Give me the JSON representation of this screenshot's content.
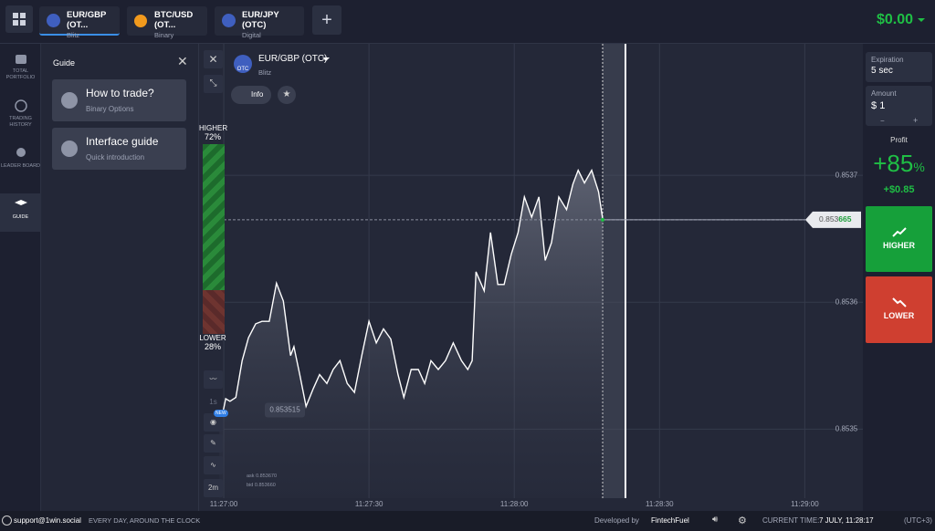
{
  "tabs": [
    {
      "title": "EUR/GBP (OT...",
      "subtitle": "Blitz"
    },
    {
      "title": "BTC/USD (OT...",
      "subtitle": "Binary"
    },
    {
      "title": "EUR/JPY (OTC)",
      "subtitle": "Digital"
    }
  ],
  "balance": "$0.00",
  "sidebar": [
    "TOTAL PORTFOLIO",
    "TRADING HISTORY",
    "LEADER BOARD",
    "GUIDE"
  ],
  "guide": {
    "title": "Guide",
    "items": [
      {
        "title": "How to trade?",
        "subtitle": "Binary Options"
      },
      {
        "title": "Interface guide",
        "subtitle": "Quick introduction"
      }
    ]
  },
  "asset": {
    "name": "EUR/GBP (OTC)",
    "mode": "Blitz",
    "info": "Info",
    "badge": "OTC"
  },
  "sentiment": {
    "higher_label": "HIGHER",
    "higher_pct": "72%",
    "lower_label": "LOWER",
    "lower_pct": "28%"
  },
  "tools": {
    "interval": "1s",
    "badge": "NEW",
    "timeframe": "2m"
  },
  "chart": {
    "type": "line",
    "color": "#ffffff",
    "grid": true,
    "x": [
      -0.9,
      0.4,
      1.3,
      2.5,
      3.8,
      5.1,
      6.6,
      7.9,
      9.4,
      10.9,
      12.3,
      13.8,
      14.5,
      15.7,
      17.0,
      18.5,
      19.8,
      21.3,
      22.6,
      24.0,
      25.5,
      27.0,
      28.5,
      30.0,
      31.5,
      33.0,
      34.5,
      36.0,
      37.2,
      38.7,
      40.2,
      41.5,
      42.8,
      44.3,
      45.8,
      47.4,
      49.1,
      50.4,
      51.3,
      52.1,
      53.8,
      55.1,
      56.6,
      57.9,
      59.4,
      60.8,
      62.1,
      63.6,
      65.1,
      66.4,
      67.7,
      69.2,
      70.8,
      72.1,
      73.2,
      74.5,
      76.0,
      77.4,
      78.3
    ],
    "values": [
      0.8535,
      0.853524,
      0.853522,
      0.853525,
      0.853554,
      0.853572,
      0.853583,
      0.853585,
      0.853585,
      0.853615,
      0.853601,
      0.853558,
      0.853565,
      0.853543,
      0.853518,
      0.853532,
      0.853543,
      0.853536,
      0.853547,
      0.853554,
      0.853536,
      0.853529,
      0.853558,
      0.853585,
      0.853568,
      0.853579,
      0.853571,
      0.853543,
      0.853525,
      0.853547,
      0.853547,
      0.853536,
      0.853554,
      0.853547,
      0.853554,
      0.853568,
      0.853554,
      0.853547,
      0.853554,
      0.853624,
      0.853609,
      0.853655,
      0.853614,
      0.853614,
      0.853638,
      0.853655,
      0.853683,
      0.853667,
      0.853683,
      0.853633,
      0.853647,
      0.853683,
      0.853673,
      0.853693,
      0.853704,
      0.853694,
      0.853704,
      0.853687,
      0.853665
    ],
    "xlim": [
      -5.1,
      132
    ],
    "ylim": [
      0.85345,
      0.8538
    ],
    "xticks": [
      {
        "value": 0,
        "label": "11:27:00"
      },
      {
        "value": 30,
        "label": "11:27:30"
      },
      {
        "value": 60,
        "label": "11:28:00"
      },
      {
        "value": 90,
        "label": "11:28:30"
      },
      {
        "value": 120,
        "label": "11:29:00"
      }
    ],
    "yticks": [
      0.8535,
      0.8536,
      0.8537
    ],
    "start_price": 0.853515,
    "price_tag": {
      "value": 0.853665,
      "label_main": "0.853",
      "label_accent": "665"
    },
    "ask": "ask 0.853670",
    "bid": "bid 0.853660"
  },
  "trade": {
    "expiration_label": "Expiration",
    "expiration": "5 sec",
    "amount_label": "Amount",
    "currency": "$",
    "amount": "1",
    "minus": "−",
    "plus": "+",
    "profit_label": "Profit",
    "profit_pct": "+85",
    "profit_unit": "%",
    "profit_amount": "+$0.85",
    "higher": "HIGHER",
    "lower": "LOWER"
  },
  "footer": {
    "support": "support@1win.social",
    "hours": "EVERY DAY, AROUND THE CLOCK",
    "developed": "Developed by",
    "developer": "FintechFuel",
    "time_label": "CURRENT TIME:",
    "time": "7 JULY, 11:28:17",
    "tz": "(UTC+3)"
  }
}
